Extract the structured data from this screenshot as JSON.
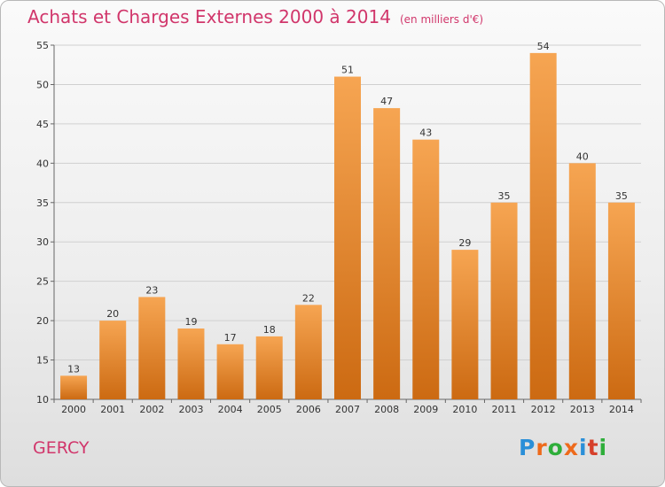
{
  "title": "Achats et Charges Externes 2000 à 2014",
  "subtitle": "(en milliers d'€)",
  "location": "GERCY",
  "logo": {
    "text": "Proxiti",
    "colors": [
      "#2a8fd8",
      "#ee6a1b",
      "#2eae3a",
      "#ee6a1b",
      "#2a8fd8",
      "#d6402b",
      "#2eae3a"
    ]
  },
  "colors": {
    "title": "#d1366b",
    "bar_top": "#f6a552",
    "bar_bottom": "#cc6a12"
  },
  "chart_data": {
    "type": "bar",
    "categories": [
      "2000",
      "2001",
      "2002",
      "2003",
      "2004",
      "2005",
      "2006",
      "2007",
      "2008",
      "2009",
      "2010",
      "2011",
      "2012",
      "2013",
      "2014"
    ],
    "values": [
      13,
      20,
      23,
      19,
      17,
      18,
      22,
      51,
      47,
      43,
      29,
      35,
      54,
      40,
      35
    ],
    "ylim": [
      10,
      55
    ],
    "yticks": [
      10,
      15,
      20,
      25,
      30,
      35,
      40,
      45,
      50,
      55
    ],
    "grid": true,
    "data_labels": true
  }
}
